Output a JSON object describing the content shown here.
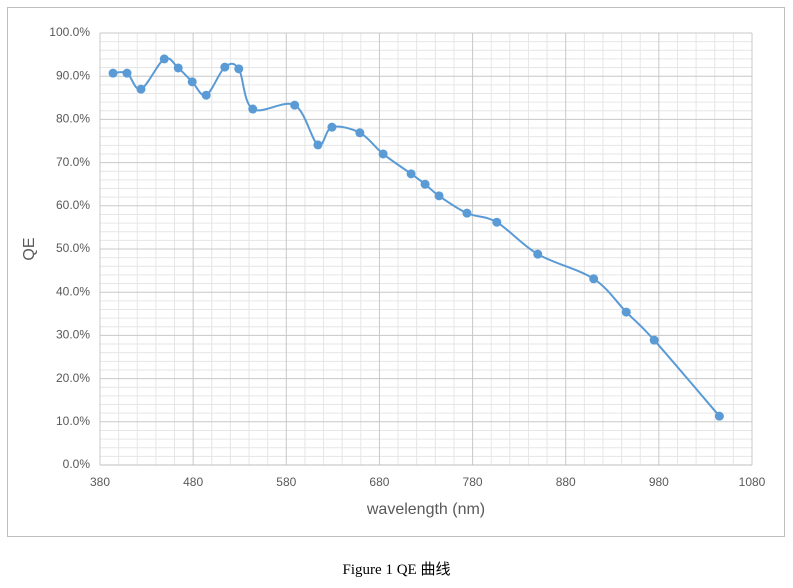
{
  "chart_data": {
    "type": "line",
    "smooth": true,
    "x_label": "wavelength (nm)",
    "y_label": "QE",
    "x": [
      394,
      409,
      424,
      449,
      464,
      479,
      494,
      514,
      529,
      544,
      589,
      614,
      629,
      659,
      684,
      714,
      729,
      744,
      774,
      806,
      850,
      910,
      945,
      975,
      1045
    ],
    "series": [
      {
        "color": "#5b9bd5",
        "values": [
          90.7,
          90.7,
          87.0,
          94.0,
          91.9,
          88.7,
          85.6,
          92.1,
          91.7,
          82.4,
          83.3,
          74.1,
          78.2,
          76.9,
          72.0,
          67.4,
          65.0,
          62.3,
          58.3,
          56.2,
          48.8,
          43.1,
          35.4,
          28.9,
          11.3
        ]
      }
    ],
    "xlim": [
      380,
      1080
    ],
    "xticks": [
      380,
      480,
      580,
      680,
      780,
      880,
      980,
      1080
    ],
    "ylim": [
      0,
      100
    ],
    "yticks": [
      {
        "value": 0,
        "label": "0.0%"
      },
      {
        "value": 10,
        "label": "10.0%"
      },
      {
        "value": 20,
        "label": "20.0%"
      },
      {
        "value": 30,
        "label": "30.0%"
      },
      {
        "value": 40,
        "label": "40.0%"
      },
      {
        "value": 50,
        "label": "50.0%"
      },
      {
        "value": 60,
        "label": "60.0%"
      },
      {
        "value": 70,
        "label": "70.0%"
      },
      {
        "value": 80,
        "label": "80.0%"
      },
      {
        "value": 90,
        "label": "90.0%"
      },
      {
        "value": 100,
        "label": "100.0%"
      }
    ],
    "grid": true,
    "minor_grid": true
  },
  "caption": "Figure 1 QE 曲线"
}
